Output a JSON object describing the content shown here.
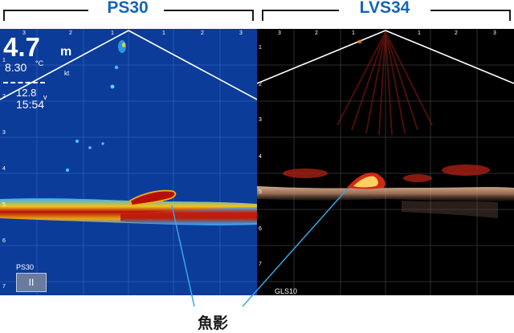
{
  "headers": {
    "left": "PS30",
    "right": "LVS34"
  },
  "left_panel": {
    "depth": "4.7",
    "depth_unit": "m",
    "temperature": "8.30",
    "temperature_unit": "°C",
    "speed": "12.8",
    "speed_unit": "kt",
    "speed_suffix": "v",
    "time": "15:54",
    "source_tag": "PS30",
    "pause_icon": "pause-icon",
    "pause_label": "II",
    "background_color": "#0c3c9a",
    "depth_scale": [
      "1",
      "2",
      "3",
      "4",
      "5",
      "6",
      "7"
    ],
    "range_scale": [
      "3",
      "2",
      "1",
      "1",
      "2",
      "3"
    ]
  },
  "right_panel": {
    "source_tag": "GLS10",
    "background_color": "#000000",
    "depth_scale": [
      "1",
      "2",
      "3",
      "4",
      "5",
      "6",
      "7"
    ],
    "range_scale": [
      "3",
      "2",
      "1",
      "1",
      "2",
      "3"
    ]
  },
  "caption": "魚影",
  "colors": {
    "header_title": "#1565b8",
    "callout_line": "#3aa6e0",
    "bottom_echo": "#c0180e",
    "fish_echo_right": "#ffd060"
  }
}
